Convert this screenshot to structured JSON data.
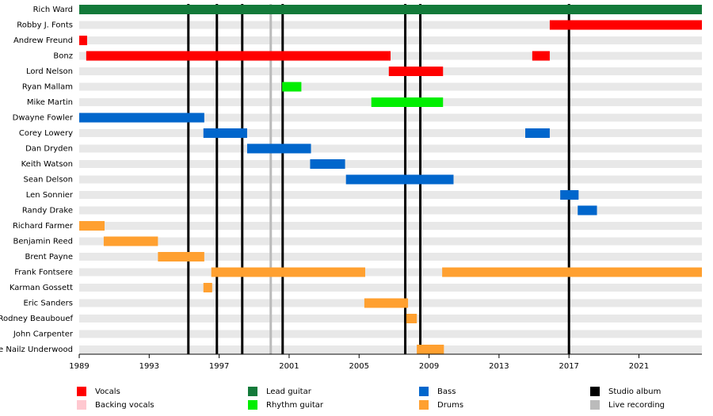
{
  "chart_data": {
    "type": "timeline",
    "legend": [
      {
        "name": "Vocals",
        "color": "#ff0000"
      },
      {
        "name": "Backing vocals",
        "color": "#ffc8d0"
      },
      {
        "name": "Lead guitar",
        "color": "#137a3a"
      },
      {
        "name": "Rhythm guitar",
        "color": "#00ee00"
      },
      {
        "name": "Bass",
        "color": "#0066cc"
      },
      {
        "name": "Drums",
        "color": "#ffa030"
      },
      {
        "name": "Studio album",
        "color": "#000000"
      },
      {
        "name": "Live recording",
        "color": "#bbbbbb"
      }
    ],
    "rows": [
      {
        "name": "Rich Ward",
        "periods": [
          {
            "role": 2,
            "start": 1989,
            "end": 2024.6
          }
        ]
      },
      {
        "name": "Robby J. Fonts",
        "periods": [
          {
            "role": 0,
            "start": 2015.9,
            "end": 2024.6
          }
        ]
      },
      {
        "name": "Andrew Freund",
        "periods": [
          {
            "role": 0,
            "start": 1989,
            "end": 1989.45
          }
        ]
      },
      {
        "name": "Bonz",
        "periods": [
          {
            "role": 0,
            "start": 1989.4,
            "end": 2006.8
          },
          {
            "role": 0,
            "start": 2014.9,
            "end": 2015.9
          }
        ]
      },
      {
        "name": "Lord Nelson",
        "periods": [
          {
            "role": 0,
            "start": 2006.7,
            "end": 2009.8
          }
        ]
      },
      {
        "name": "Ryan Mallam",
        "periods": [
          {
            "role": 3,
            "start": 2000.6,
            "end": 2001.7
          }
        ]
      },
      {
        "name": "Mike Martin",
        "periods": [
          {
            "role": 3,
            "start": 2005.7,
            "end": 2009.8
          }
        ]
      },
      {
        "name": "Dwayne Fowler",
        "periods": [
          {
            "role": 4,
            "start": 1989,
            "end": 1996.15
          }
        ]
      },
      {
        "name": "Corey Lowery",
        "periods": [
          {
            "role": 4,
            "start": 1996.1,
            "end": 1998.6
          },
          {
            "role": 4,
            "start": 2014.5,
            "end": 2015.9
          }
        ]
      },
      {
        "name": "Dan Dryden",
        "periods": [
          {
            "role": 4,
            "start": 1998.6,
            "end": 2002.25
          }
        ]
      },
      {
        "name": "Keith Watson",
        "periods": [
          {
            "role": 4,
            "start": 2002.2,
            "end": 2004.2
          }
        ]
      },
      {
        "name": "Sean Delson",
        "periods": [
          {
            "role": 4,
            "start": 2004.25,
            "end": 2010.4
          }
        ]
      },
      {
        "name": "Len Sonnier",
        "periods": [
          {
            "role": 4,
            "start": 2016.5,
            "end": 2017.55
          }
        ]
      },
      {
        "name": "Randy Drake",
        "periods": [
          {
            "role": 4,
            "start": 2017.5,
            "end": 2018.6
          }
        ]
      },
      {
        "name": "Richard Farmer",
        "periods": [
          {
            "role": 5,
            "start": 1989,
            "end": 1990.45
          }
        ]
      },
      {
        "name": "Benjamin Reed",
        "periods": [
          {
            "role": 5,
            "start": 1990.4,
            "end": 1993.5
          }
        ]
      },
      {
        "name": "Brent Payne",
        "periods": [
          {
            "role": 5,
            "start": 1993.5,
            "end": 1996.15
          }
        ]
      },
      {
        "name": "Frank Fontsere",
        "periods": [
          {
            "role": 5,
            "start": 1996.55,
            "end": 2005.35
          },
          {
            "role": 5,
            "start": 2009.75,
            "end": 2024.6
          }
        ]
      },
      {
        "name": "Karman Gossett",
        "periods": [
          {
            "role": 5,
            "start": 1996.1,
            "end": 1996.6
          }
        ]
      },
      {
        "name": "Eric Sanders",
        "periods": [
          {
            "role": 5,
            "start": 2005.3,
            "end": 2007.8
          }
        ]
      },
      {
        "name": "Rodney Beaubouef",
        "periods": [
          {
            "role": 5,
            "start": 2007.7,
            "end": 2008.3
          }
        ]
      },
      {
        "name": "John Carpenter",
        "periods": []
      },
      {
        "name": "Steve Nailz Underwood",
        "periods": [
          {
            "role": 5,
            "start": 2008.3,
            "end": 2009.85
          }
        ]
      }
    ],
    "events": [
      {
        "role": 6,
        "x": 1995.24
      },
      {
        "role": 6,
        "x": 1996.87
      },
      {
        "role": 6,
        "x": 1998.32
      },
      {
        "role": 7,
        "x": 1999.95
      },
      {
        "role": 6,
        "x": 2000.63
      },
      {
        "role": 6,
        "x": 2007.64
      },
      {
        "role": 6,
        "x": 2008.5
      },
      {
        "role": 6,
        "x": 2017.0
      }
    ],
    "xlim": [
      1989,
      2024.6
    ],
    "xticks": [
      1989,
      1993,
      1997,
      2001,
      2005,
      2009,
      2013,
      2017,
      2021
    ]
  }
}
